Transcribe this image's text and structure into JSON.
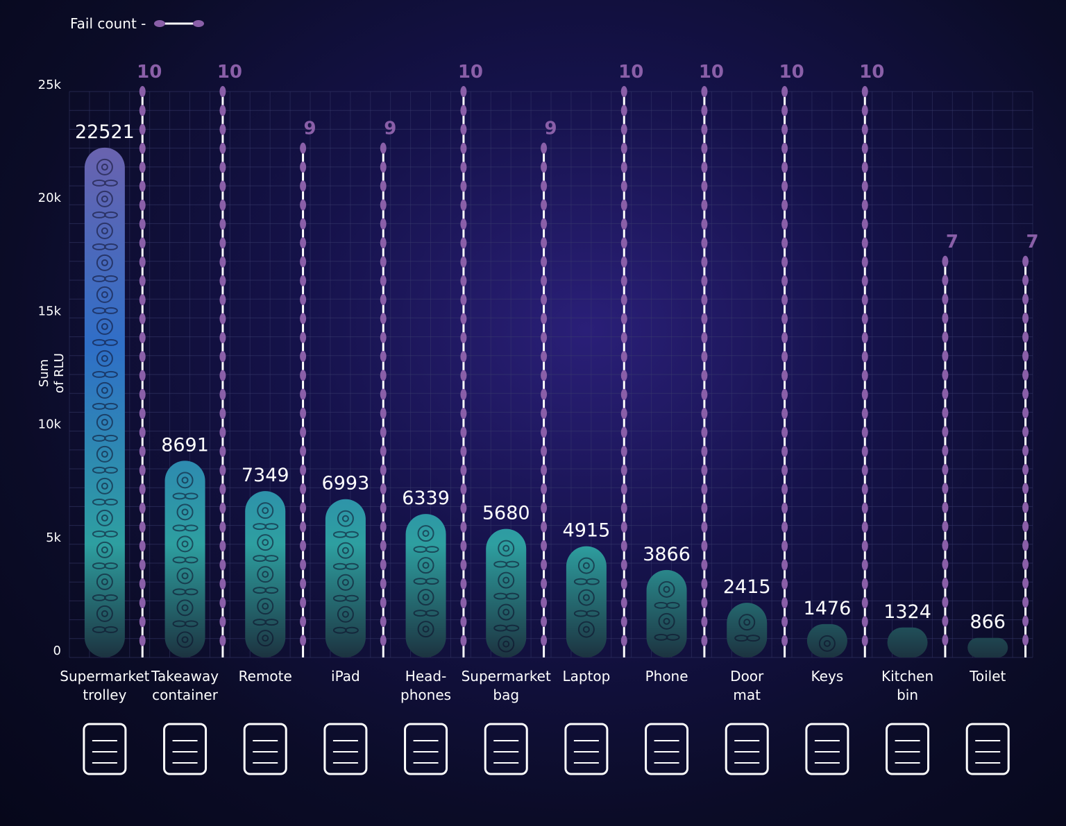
{
  "legend": {
    "label": "Fail count  -"
  },
  "chart_data": {
    "type": "bar",
    "ylabel": "Sum\nof RLU",
    "ylim": [
      0,
      25000
    ],
    "yticks": [
      {
        "value": 0,
        "label": "0"
      },
      {
        "value": 5000,
        "label": "5k"
      },
      {
        "value": 10000,
        "label": "10k"
      },
      {
        "value": 15000,
        "label": "15k"
      },
      {
        "value": 20000,
        "label": "20k"
      },
      {
        "value": 25000,
        "label": "25k"
      }
    ],
    "grid": true,
    "categories": [
      "Supermarket\ntrolley",
      "Takeaway\ncontainer",
      "Remote",
      "iPad",
      "Head-\nphones",
      "Supermarket\nbag",
      "Laptop",
      "Phone",
      "Door\nmat",
      "Keys",
      "Kitchen\nbin",
      "Toilet"
    ],
    "icons": [
      "shopping-cart-icon",
      "takeaway-box-icon",
      "remote-control-icon",
      "ipad-icon",
      "headphones-icon",
      "shopping-bags-icon",
      "laptop-icon",
      "phone-icon",
      "door-mat-icon",
      "keys-icon",
      "kitchen-bin-icon",
      "toilet-icon"
    ],
    "series": [
      {
        "name": "Sum of RLU",
        "values": [
          22521,
          8691,
          7349,
          6993,
          6339,
          5680,
          4915,
          3866,
          2415,
          1476,
          1324,
          866
        ],
        "labels": [
          "22521",
          "8691",
          "7349",
          "6993",
          "6339",
          "5680",
          "4915",
          "3866",
          "2415",
          "1476",
          "1324",
          "866"
        ]
      },
      {
        "name": "Fail count",
        "values": [
          10,
          10,
          9,
          9,
          10,
          9,
          10,
          10,
          10,
          10,
          7,
          7
        ],
        "labels": [
          "10",
          "10",
          "9",
          "9",
          "10",
          "9",
          "10",
          "10",
          "10",
          "10",
          "7",
          "7"
        ],
        "max": 10
      }
    ],
    "colors": {
      "bar_top": "#7a5fa8",
      "bar_mid": "#2f6fc7",
      "bar_low": "#2e9fa0",
      "bar_bottom": "#1c3340",
      "fail_line": "#ffffff",
      "fail_dot": "#8a5fa8",
      "fail_label": "#8a5fa8",
      "grid": "#3a3d6e"
    }
  }
}
